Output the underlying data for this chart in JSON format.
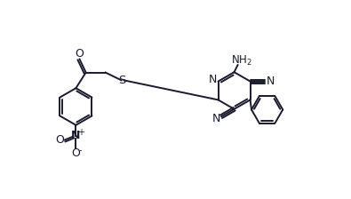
{
  "bg_color": "#ffffff",
  "line_color": "#1a1a2e",
  "line_width": 1.4,
  "figsize": [
    3.95,
    2.24
  ],
  "dpi": 100,
  "xlim": [
    0.0,
    9.8
  ],
  "ylim": [
    0.2,
    5.6
  ]
}
